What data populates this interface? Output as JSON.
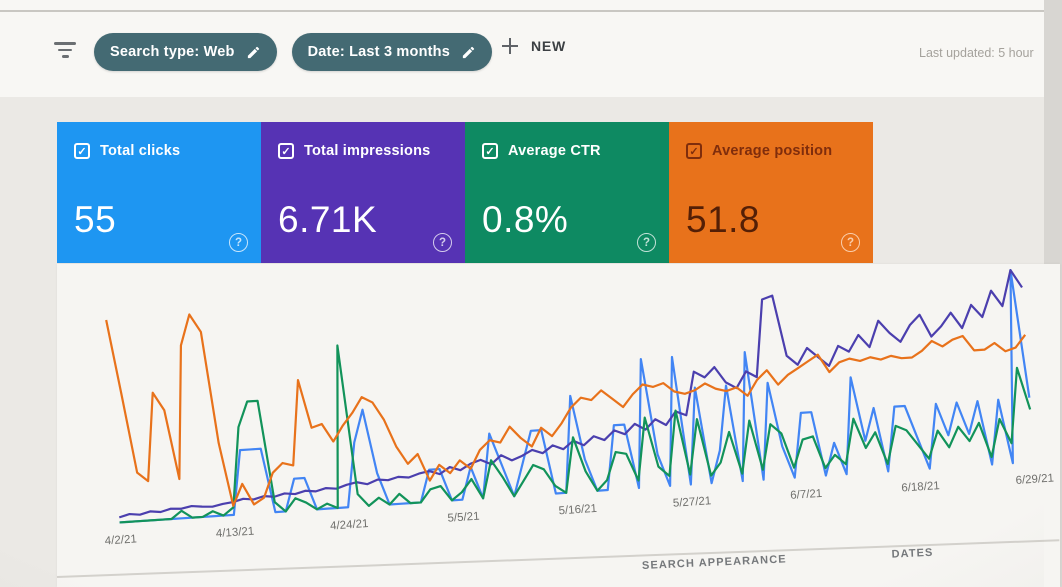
{
  "header": {
    "filters": [
      {
        "label": "Search type: Web"
      },
      {
        "label": "Date: Last 3 months"
      }
    ],
    "plus_glyph": "+",
    "new_button": "NEW",
    "last_updated": "Last updated: 5 hour",
    "icons": [
      "filter-list-icon",
      "pencil-icon",
      "plus-icon"
    ],
    "chip_color": "#446a73"
  },
  "cards": [
    {
      "label": "Total clicks",
      "value": "55",
      "bg": "#1e96f2",
      "fg": "#ffffff",
      "checked": true
    },
    {
      "label": "Total impressions",
      "value": "6.71K",
      "bg": "#5633b4",
      "fg": "#ffffff",
      "checked": true
    },
    {
      "label": "Average CTR",
      "value": "0.8%",
      "bg": "#0e8a62",
      "fg": "#ffffff",
      "checked": true
    },
    {
      "label": "Average position",
      "value": "51.8",
      "bg": "#e8721b",
      "fg": "#7f2d0c",
      "value_color": "#541f06",
      "help_color": "rgba(255,236,220,0.75)",
      "checked": true
    }
  ],
  "check_glyph": "✓",
  "help_glyph": "?",
  "chart_data": {
    "type": "line",
    "x_tick_labels": [
      "4/2/21",
      "4/13/21",
      "4/24/21",
      "5/5/21",
      "5/16/21",
      "5/27/21",
      "6/7/21",
      "6/18/21",
      "6/29/21"
    ],
    "x_tick_indices": [
      0,
      11,
      22,
      33,
      44,
      55,
      66,
      77,
      88
    ],
    "x_range_days": 89,
    "grid": false,
    "legend": "none",
    "series": [
      {
        "name": "Total clicks",
        "color": "#4285f4",
        "ymax": 6.6,
        "values": [
          0,
          0,
          0,
          0,
          0,
          0,
          0,
          0,
          0,
          0,
          0,
          0,
          2,
          2,
          2,
          0,
          0,
          1,
          1,
          0,
          0,
          0,
          0,
          2,
          3,
          1,
          0,
          0,
          0,
          0,
          1,
          1,
          0,
          0,
          1,
          0,
          2,
          1,
          0,
          1,
          2,
          2,
          0,
          0,
          3,
          1,
          0,
          0,
          2,
          2,
          0,
          4,
          1,
          0,
          4,
          0,
          3,
          0,
          1,
          3,
          0,
          4,
          0,
          3,
          1,
          0,
          2,
          2,
          0,
          1,
          0,
          3,
          1,
          2,
          0,
          2,
          2,
          1,
          0,
          2,
          1,
          2,
          1,
          2,
          0,
          2,
          0,
          6,
          2
        ]
      },
      {
        "name": "Total impressions",
        "color": "#4b3fae",
        "ymax": 330,
        "values": [
          8,
          12,
          10,
          14,
          12,
          16,
          15,
          18,
          16,
          15,
          18,
          20,
          24,
          22,
          26,
          24,
          28,
          26,
          30,
          28,
          32,
          30,
          35,
          38,
          34,
          40,
          38,
          42,
          40,
          45,
          48,
          42,
          52,
          46,
          55,
          60,
          52,
          65,
          56,
          62,
          70,
          64,
          75,
          68,
          80,
          72,
          85,
          78,
          92,
          85,
          100,
          90,
          105,
          95,
          115,
          108,
          175,
          165,
          180,
          155,
          145,
          170,
          160,
          280,
          285,
          190,
          175,
          200,
          185,
          170,
          200,
          190,
          215,
          195,
          235,
          215,
          200,
          225,
          240,
          205,
          220,
          240,
          215,
          250,
          230,
          270,
          245,
          300,
          272
        ]
      },
      {
        "name": "Average CTR",
        "color": "#12935a",
        "unit": "%",
        "ymax": 8.5,
        "values": [
          0,
          0,
          0,
          0,
          0,
          0,
          0.3,
          0,
          0,
          0.2,
          0,
          0.3,
          3.5,
          4.5,
          4.5,
          0.4,
          0,
          0.5,
          0.3,
          0,
          0.2,
          0,
          6.5,
          0.5,
          0,
          0.3,
          0,
          0.4,
          0,
          0,
          0.5,
          0.6,
          0,
          0.3,
          0.8,
          0,
          1.5,
          0.8,
          0,
          0.6,
          1.2,
          1,
          0.3,
          0,
          2.2,
          0.8,
          0,
          0.4,
          1.5,
          1.4,
          0.3,
          2.8,
          0.8,
          0.4,
          3,
          0.4,
          2.6,
          0.3,
          0.8,
          2,
          0.3,
          2.4,
          0.4,
          2.2,
          1.8,
          0.4,
          1.5,
          1.6,
          0.3,
          0.8,
          0.4,
          2.2,
          1,
          1.6,
          0.3,
          1.8,
          1.6,
          1,
          0.4,
          1.5,
          0.8,
          1.6,
          1,
          1.7,
          0.3,
          1.8,
          0.8,
          3.8,
          2.1
        ]
      },
      {
        "name": "Average position",
        "color": "#e8721b",
        "inverted": true,
        "range": [
          15,
          85
        ],
        "values": [
          18,
          43,
          69,
          72,
          43,
          49,
          72,
          28,
          18,
          24,
          61,
          82,
          75,
          82,
          80,
          72,
          69,
          70,
          42,
          58,
          57,
          63,
          58,
          54,
          49,
          51,
          57,
          66,
          72,
          69,
          78,
          73,
          76,
          72,
          75,
          69,
          66,
          67,
          62,
          66,
          69,
          63,
          66,
          62,
          57,
          54,
          55,
          52,
          55,
          58,
          54,
          51,
          52,
          51,
          54,
          55,
          54,
          52,
          54,
          55,
          54,
          57,
          52,
          49,
          54,
          51,
          49,
          47,
          45,
          51,
          48,
          47,
          48,
          47,
          48,
          47,
          48,
          48,
          46,
          43,
          45,
          43,
          42,
          47,
          47,
          45,
          48,
          47,
          43
        ]
      }
    ]
  },
  "footer": {
    "tabs": [
      "SEARCH APPEARANCE",
      "DATES"
    ]
  }
}
